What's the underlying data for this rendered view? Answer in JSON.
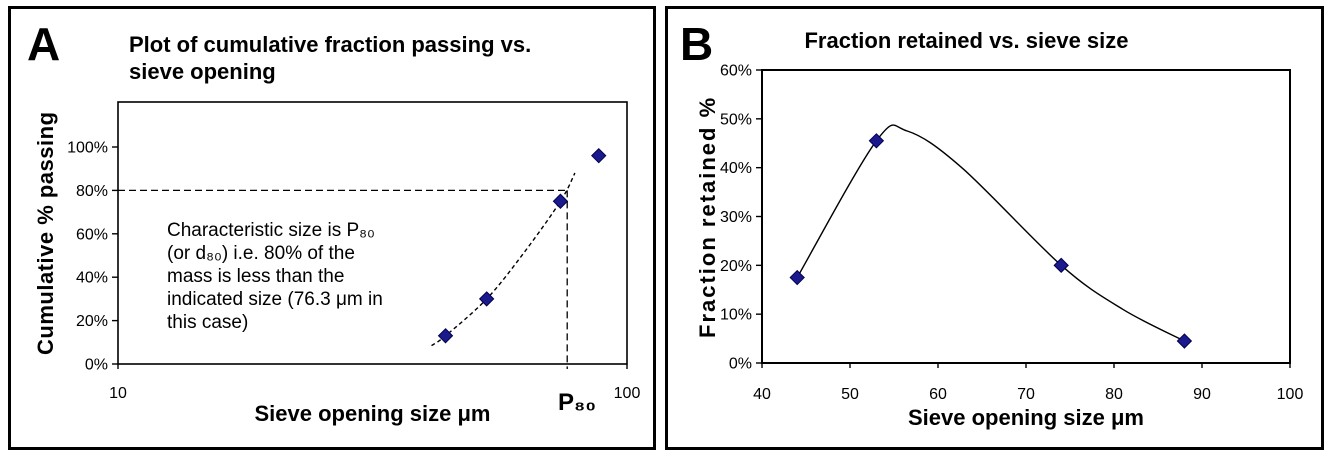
{
  "colors": {
    "marker_fill": "#1a1a8c",
    "marker_stroke": "#000050",
    "line": "#000000",
    "frame": "#000000",
    "background": "#ffffff"
  },
  "chart_data": [
    {
      "id": "A",
      "panel_label": "A",
      "type": "scatter",
      "title": "Plot of cumulative fraction passing vs. sieve opening",
      "title_display": "Plot of cumulative fraction passing vs.\nsieve opening",
      "xlabel": "Sieve opening size μm",
      "ylabel": "Cumulative % passing",
      "x_scale": "log",
      "xlim": [
        10,
        100
      ],
      "ylim_pct": [
        0,
        120
      ],
      "grid": false,
      "x_tick_values": [
        10,
        100
      ],
      "x_tick_labels": [
        "10",
        "100"
      ],
      "y_tick_values": [
        0,
        20,
        40,
        60,
        80,
        100
      ],
      "y_tick_labels": [
        "0%",
        "20%",
        "40%",
        "60%",
        "80%",
        "100%"
      ],
      "points": [
        {
          "x": 44,
          "y_pct": 13
        },
        {
          "x": 53,
          "y_pct": 30
        },
        {
          "x": 74,
          "y_pct": 75
        },
        {
          "x": 88,
          "y_pct": 96
        }
      ],
      "trend_style": "dashed",
      "trend_waypoints": [
        [
          41.3,
          8.5
        ],
        [
          44,
          13
        ],
        [
          53,
          30
        ],
        [
          62.6,
          51
        ],
        [
          74,
          75
        ],
        [
          79,
          88
        ]
      ],
      "p80_marker": {
        "x": 76.3,
        "y_pct": 80,
        "label": "P₈₀"
      },
      "annotation": "Characteristic size is P₈₀\n(or d₈₀) i.e. 80% of the\nmass is less than the\nindicated size (76.3 μm in\nthis case)"
    },
    {
      "id": "B",
      "panel_label": "B",
      "type": "scatter",
      "title": "Fraction retained vs. sieve size",
      "title_display": "Fraction retained vs. sieve size",
      "xlabel": "Sieve opening size μm",
      "ylabel": "Fraction retained %",
      "x_scale": "linear",
      "xlim": [
        40,
        100
      ],
      "ylim_pct": [
        0,
        60
      ],
      "grid": false,
      "x_tick_values": [
        40,
        50,
        60,
        70,
        80,
        90,
        100
      ],
      "x_tick_labels": [
        "40",
        "50",
        "60",
        "70",
        "80",
        "90",
        "100"
      ],
      "y_tick_values": [
        0,
        10,
        20,
        30,
        40,
        50,
        60
      ],
      "y_tick_labels": [
        "0%",
        "10%",
        "20%",
        "30%",
        "40%",
        "50%",
        "60%"
      ],
      "points": [
        {
          "x": 44,
          "y_pct": 17.5
        },
        {
          "x": 53,
          "y_pct": 45.5
        },
        {
          "x": 74,
          "y_pct": 20
        },
        {
          "x": 88,
          "y_pct": 4.5
        }
      ],
      "trend_style": "solid",
      "trend_waypoints": [
        [
          44,
          17.5
        ],
        [
          53,
          45.5
        ],
        [
          56.5,
          47.5
        ],
        [
          62.7,
          40
        ],
        [
          74,
          20
        ],
        [
          81,
          11
        ],
        [
          88,
          4.5
        ]
      ]
    }
  ]
}
